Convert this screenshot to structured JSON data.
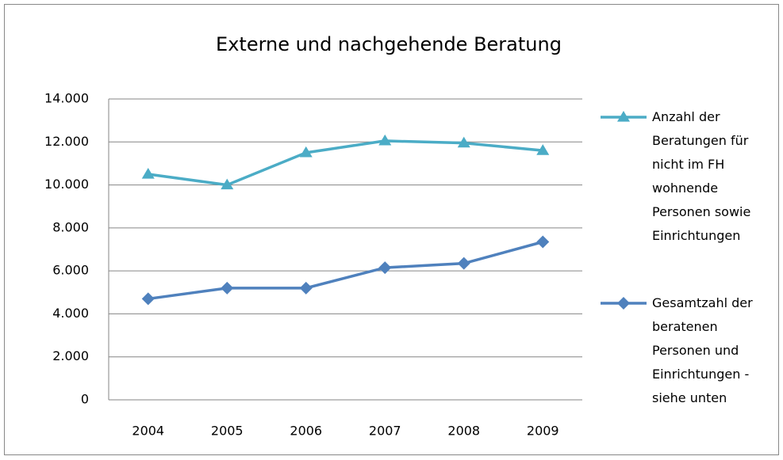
{
  "chart_data": {
    "type": "line",
    "title": "Externe und nachgehende Beratung",
    "categories": [
      "2004",
      "2005",
      "2006",
      "2007",
      "2008",
      "2009"
    ],
    "series": [
      {
        "name": "Anzahl der Beratungen für nicht im FH wohnende Personen sowie Einrichtungen",
        "color": "#4bacc6",
        "marker": "triangle",
        "values": [
          10500,
          10000,
          11500,
          12050,
          11950,
          11600
        ]
      },
      {
        "name": "Gesamtzahl der beratenen Personen und Einrichtungen - siehe unten",
        "color": "#4f81bd",
        "marker": "diamond",
        "values": [
          4700,
          5200,
          5200,
          6150,
          6350,
          7350
        ]
      }
    ],
    "ylim": [
      0,
      14000
    ],
    "yticks": [
      0,
      {
        "value": 2000,
        "label": "2.000"
      },
      {
        "value": 4000,
        "label": "4.000"
      },
      {
        "value": 6000,
        "label": "6.000"
      },
      {
        "value": 8000,
        "label": "8.000"
      },
      {
        "value": 10000,
        "label": "10.000"
      },
      {
        "value": 12000,
        "label": "12.000"
      },
      {
        "value": 14000,
        "label": "14.000"
      }
    ],
    "grid": true,
    "legend": "right"
  }
}
